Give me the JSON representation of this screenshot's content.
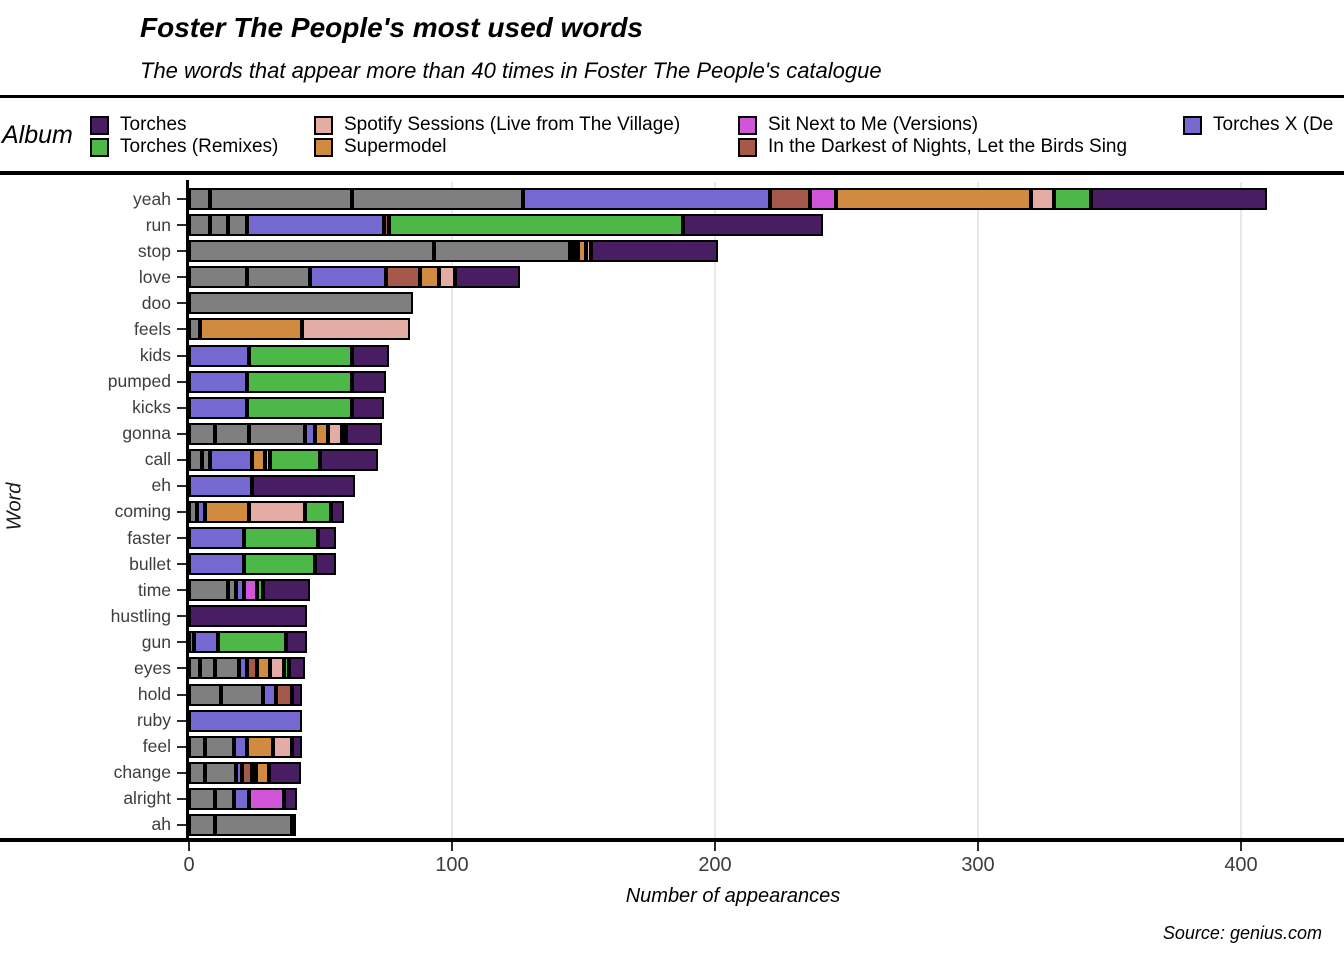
{
  "chart_data": {
    "type": "bar",
    "orientation": "horizontal",
    "stacked": true,
    "title": "Foster The People's most used words",
    "subtitle": "The words that appear more than 40 times in Foster The People's catalogue",
    "legend_title": "Album",
    "legend_position": "top",
    "xlabel": "Number of appearances",
    "ylabel": "Word",
    "source": "Source: genius.com",
    "xlim": [
      0,
      436
    ],
    "xticks": [
      0,
      100,
      200,
      300,
      400
    ],
    "grid": "vertical-light",
    "colors": {
      "torches": "#481d61",
      "torches_remixes": "#4db848",
      "spotify_sessions": "#e3aca5",
      "supermodel": "#d08b41",
      "sit_next_to_me": "#d155d8",
      "darkest_nights": "#a5594a",
      "torches_x": "#7569d1",
      "other": "#7f7f7f"
    },
    "legend": [
      {
        "label": "Torches",
        "album": "torches",
        "col": 0,
        "row": 0
      },
      {
        "label": "Torches (Remixes)",
        "album": "torches_remixes",
        "col": 0,
        "row": 1
      },
      {
        "label": "Spotify Sessions (Live from The Village)",
        "album": "spotify_sessions",
        "col": 1,
        "row": 0
      },
      {
        "label": "Supermodel",
        "album": "supermodel",
        "col": 1,
        "row": 1
      },
      {
        "label": "Sit Next to Me (Versions)",
        "album": "sit_next_to_me",
        "col": 2,
        "row": 0
      },
      {
        "label": "In the Darkest of Nights, Let the Birds Sing",
        "album": "darkest_nights",
        "col": 2,
        "row": 1
      },
      {
        "label": "Torches X (De",
        "album": "torches_x",
        "col": 3,
        "row": 0
      }
    ],
    "bars": [
      {
        "word": "yeah",
        "segments": [
          [
            "other",
            8
          ],
          [
            "other",
            54
          ],
          [
            "other",
            65
          ],
          [
            "torches_x",
            94
          ],
          [
            "darkest_nights",
            15
          ],
          [
            "sit_next_to_me",
            10
          ],
          [
            "supermodel",
            74
          ],
          [
            "spotify_sessions",
            9
          ],
          [
            "torches_remixes",
            14
          ],
          [
            "torches",
            67
          ]
        ]
      },
      {
        "word": "run",
        "segments": [
          [
            "other",
            8
          ],
          [
            "other",
            7
          ],
          [
            "other",
            7
          ],
          [
            "torches_x",
            52
          ],
          [
            "darkest_nights",
            2
          ],
          [
            "torches_remixes",
            112
          ],
          [
            "torches",
            53
          ]
        ]
      },
      {
        "word": "stop",
        "segments": [
          [
            "other",
            93
          ],
          [
            "other",
            52
          ],
          [
            "torches_x",
            1
          ],
          [
            "sit_next_to_me",
            1
          ],
          [
            "supermodel",
            3
          ],
          [
            "spotify_sessions",
            2
          ],
          [
            "torches",
            48
          ]
        ]
      },
      {
        "word": "love",
        "segments": [
          [
            "other",
            22
          ],
          [
            "other",
            24
          ],
          [
            "torches_x",
            29
          ],
          [
            "darkest_nights",
            13
          ],
          [
            "supermodel",
            7
          ],
          [
            "spotify_sessions",
            6
          ],
          [
            "torches",
            25
          ]
        ]
      },
      {
        "word": "doo",
        "segments": [
          [
            "other",
            85
          ]
        ]
      },
      {
        "word": "feels",
        "segments": [
          [
            "other",
            4
          ],
          [
            "supermodel",
            39
          ],
          [
            "spotify_sessions",
            41
          ]
        ]
      },
      {
        "word": "kids",
        "segments": [
          [
            "torches_x",
            23
          ],
          [
            "torches_remixes",
            39
          ],
          [
            "torches",
            14
          ]
        ]
      },
      {
        "word": "pumped",
        "segments": [
          [
            "torches_x",
            22
          ],
          [
            "torches_remixes",
            40
          ],
          [
            "torches",
            13
          ]
        ]
      },
      {
        "word": "kicks",
        "segments": [
          [
            "torches_x",
            22
          ],
          [
            "torches_remixes",
            40
          ],
          [
            "torches",
            12
          ]
        ]
      },
      {
        "word": "gonna",
        "segments": [
          [
            "other",
            10
          ],
          [
            "other",
            13
          ],
          [
            "other",
            21
          ],
          [
            "torches_x",
            4
          ],
          [
            "supermodel",
            5
          ],
          [
            "spotify_sessions",
            5
          ],
          [
            "torches_remixes",
            1
          ],
          [
            "torches",
            14
          ]
        ]
      },
      {
        "word": "call",
        "segments": [
          [
            "other",
            5
          ],
          [
            "other",
            3
          ],
          [
            "torches_x",
            16
          ],
          [
            "supermodel",
            5
          ],
          [
            "spotify_sessions",
            2
          ],
          [
            "torches_remixes",
            19
          ],
          [
            "torches",
            22
          ]
        ]
      },
      {
        "word": "eh",
        "segments": [
          [
            "torches_x",
            24
          ],
          [
            "torches",
            39
          ]
        ]
      },
      {
        "word": "coming",
        "segments": [
          [
            "other",
            3
          ],
          [
            "torches_x",
            3
          ],
          [
            "supermodel",
            17
          ],
          [
            "spotify_sessions",
            21
          ],
          [
            "torches_remixes",
            10
          ],
          [
            "torches",
            5
          ]
        ]
      },
      {
        "word": "faster",
        "segments": [
          [
            "torches_x",
            21
          ],
          [
            "torches_remixes",
            28
          ],
          [
            "torches",
            7
          ]
        ]
      },
      {
        "word": "bullet",
        "segments": [
          [
            "torches_x",
            21
          ],
          [
            "torches_remixes",
            27
          ],
          [
            "torches",
            8
          ]
        ]
      },
      {
        "word": "time",
        "segments": [
          [
            "other",
            15
          ],
          [
            "other",
            3
          ],
          [
            "torches_x",
            3
          ],
          [
            "sit_next_to_me",
            5
          ],
          [
            "torches_remixes",
            2
          ],
          [
            "torches",
            18
          ]
        ]
      },
      {
        "word": "hustling",
        "segments": [
          [
            "torches",
            45
          ]
        ]
      },
      {
        "word": "gun",
        "segments": [
          [
            "other",
            2
          ],
          [
            "torches_x",
            9
          ],
          [
            "torches_remixes",
            26
          ],
          [
            "torches",
            8
          ]
        ]
      },
      {
        "word": "eyes",
        "segments": [
          [
            "other",
            4
          ],
          [
            "other",
            6
          ],
          [
            "other",
            9
          ],
          [
            "torches_x",
            3
          ],
          [
            "darkest_nights",
            4
          ],
          [
            "supermodel",
            5
          ],
          [
            "spotify_sessions",
            5
          ],
          [
            "torches_remixes",
            2
          ],
          [
            "torches",
            6
          ]
        ]
      },
      {
        "word": "hold",
        "segments": [
          [
            "other",
            12
          ],
          [
            "other",
            16
          ],
          [
            "torches_x",
            5
          ],
          [
            "darkest_nights",
            6
          ],
          [
            "torches",
            4
          ]
        ]
      },
      {
        "word": "ruby",
        "segments": [
          [
            "torches_x",
            43
          ]
        ]
      },
      {
        "word": "feel",
        "segments": [
          [
            "other",
            6
          ],
          [
            "other",
            11
          ],
          [
            "torches_x",
            5
          ],
          [
            "supermodel",
            10
          ],
          [
            "spotify_sessions",
            7
          ],
          [
            "torches",
            4
          ]
        ]
      },
      {
        "word": "change",
        "segments": [
          [
            "other",
            6
          ],
          [
            "other",
            12
          ],
          [
            "torches_x",
            2
          ],
          [
            "darkest_nights",
            4
          ],
          [
            "sit_next_to_me",
            1
          ],
          [
            "supermodel",
            5
          ],
          [
            "torches",
            12
          ]
        ]
      },
      {
        "word": "alright",
        "segments": [
          [
            "other",
            10
          ],
          [
            "other",
            7
          ],
          [
            "torches_x",
            6
          ],
          [
            "sit_next_to_me",
            13
          ],
          [
            "torches",
            5
          ]
        ]
      },
      {
        "word": "ah",
        "segments": [
          [
            "other",
            10
          ],
          [
            "other",
            29
          ],
          [
            "other",
            1
          ]
        ]
      }
    ]
  }
}
